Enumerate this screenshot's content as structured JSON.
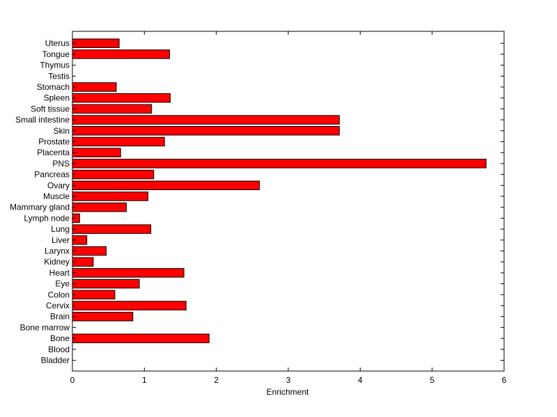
{
  "chart_data": {
    "type": "bar",
    "orientation": "horizontal",
    "title": "",
    "xlabel": "Enrichment",
    "ylabel": "",
    "xlim": [
      0,
      6
    ],
    "xticks": [
      0,
      1,
      2,
      3,
      4,
      5,
      6
    ],
    "grid": false,
    "bar_color": "#ff0000",
    "categories": [
      "Bladder",
      "Blood",
      "Bone",
      "Bone marrow",
      "Brain",
      "Cervix",
      "Colon",
      "Eye",
      "Heart",
      "Kidney",
      "Larynx",
      "Liver",
      "Lung",
      "Lymph node",
      "Mammary gland",
      "Muscle",
      "Ovary",
      "Pancreas",
      "PNS",
      "Placenta",
      "Prostate",
      "Skin",
      "Small intestine",
      "Soft tissue",
      "Spleen",
      "Stomach",
      "Testis",
      "Thymus",
      "Tongue",
      "Uterus"
    ],
    "values": [
      0,
      0,
      1.9,
      0,
      0.84,
      1.58,
      0.59,
      0.93,
      1.55,
      0.29,
      0.47,
      0.2,
      1.09,
      0.1,
      0.75,
      1.05,
      2.6,
      1.13,
      5.75,
      0.67,
      1.28,
      3.71,
      3.71,
      1.1,
      1.36,
      0.61,
      0,
      0,
      1.35,
      0.65
    ]
  }
}
